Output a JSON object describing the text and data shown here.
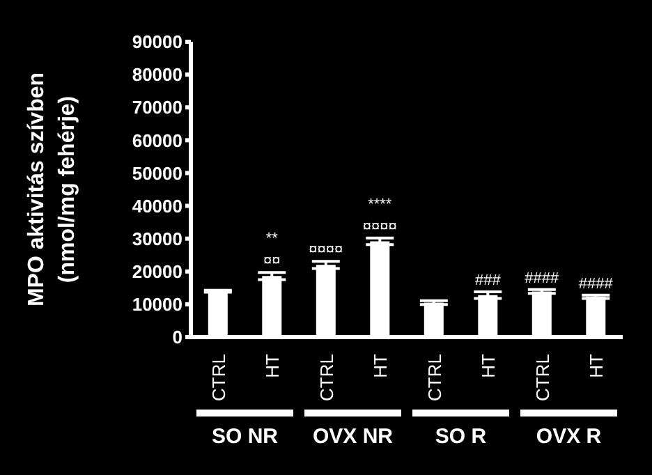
{
  "chart_data": {
    "type": "bar",
    "ylabel": "MPO aktivitás szívben\n(nmol/mg fehérje)",
    "categories": [
      "CTRL",
      "HT",
      "CTRL",
      "HT",
      "CTRL",
      "HT",
      "CTRL",
      "HT"
    ],
    "values": [
      14000,
      18600,
      22000,
      29200,
      10500,
      12800,
      13900,
      12300
    ],
    "errors": [
      300,
      1100,
      1100,
      1000,
      600,
      1000,
      600,
      500
    ],
    "value_labels": [
      null,
      "**\n¤¤",
      "¤¤¤¤",
      "****\n¤¤¤¤",
      null,
      "###",
      "####",
      "####"
    ],
    "color": "#ffffff",
    "ylim": [
      0,
      90000
    ],
    "yticks": [
      0,
      10000,
      20000,
      30000,
      40000,
      50000,
      60000,
      70000,
      80000,
      90000
    ],
    "grid": false,
    "annotations": [
      "SO NR",
      "OVX NR",
      "SO R",
      "OVX R"
    ]
  }
}
